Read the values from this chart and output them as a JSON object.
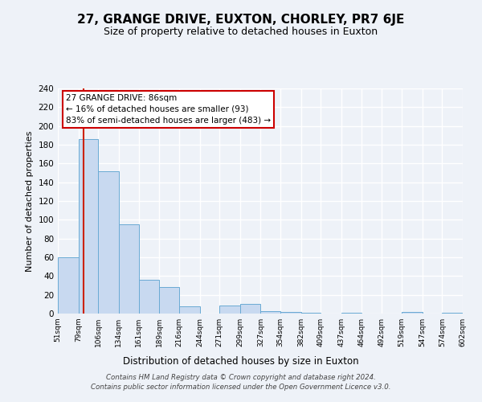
{
  "title": "27, GRANGE DRIVE, EUXTON, CHORLEY, PR7 6JE",
  "subtitle": "Size of property relative to detached houses in Euxton",
  "xlabel": "Distribution of detached houses by size in Euxton",
  "ylabel": "Number of detached properties",
  "bin_edges": [
    51,
    79,
    106,
    134,
    161,
    189,
    216,
    244,
    271,
    299,
    327,
    354,
    382,
    409,
    437,
    464,
    492,
    519,
    547,
    574,
    602
  ],
  "bin_heights": [
    60,
    186,
    152,
    95,
    36,
    28,
    8,
    0,
    9,
    10,
    3,
    2,
    1,
    0,
    1,
    0,
    0,
    2,
    0,
    1
  ],
  "bar_color": "#c8d9f0",
  "bar_edge_color": "#6aaad4",
  "red_line_x": 86,
  "annotation_title": "27 GRANGE DRIVE: 86sqm",
  "annotation_line1": "← 16% of detached houses are smaller (93)",
  "annotation_line2": "83% of semi-detached houses are larger (483) →",
  "annotation_box_color": "#ffffff",
  "annotation_box_edge": "#cc0000",
  "red_line_color": "#cc2200",
  "tick_labels": [
    "51sqm",
    "79sqm",
    "106sqm",
    "134sqm",
    "161sqm",
    "189sqm",
    "216sqm",
    "244sqm",
    "271sqm",
    "299sqm",
    "327sqm",
    "354sqm",
    "382sqm",
    "409sqm",
    "437sqm",
    "464sqm",
    "492sqm",
    "519sqm",
    "547sqm",
    "574sqm",
    "602sqm"
  ],
  "ylim": [
    0,
    240
  ],
  "yticks": [
    0,
    20,
    40,
    60,
    80,
    100,
    120,
    140,
    160,
    180,
    200,
    220,
    240
  ],
  "footer1": "Contains HM Land Registry data © Crown copyright and database right 2024.",
  "footer2": "Contains public sector information licensed under the Open Government Licence v3.0.",
  "background_color": "#eef2f8",
  "grid_color": "#ffffff",
  "title_fontsize": 11,
  "subtitle_fontsize": 9
}
